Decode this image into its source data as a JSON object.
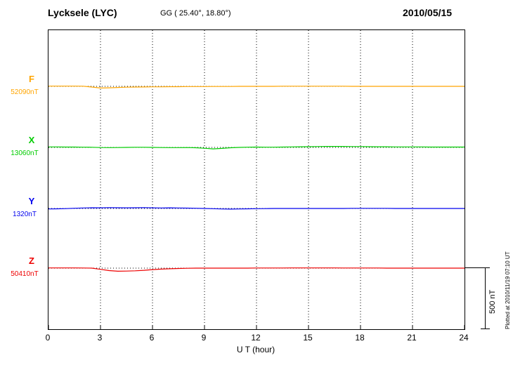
{
  "header": {
    "station": "Lycksele (LYC)",
    "coordinates": "GG ( 25.40°,  18.80°)",
    "date": "2010/05/15"
  },
  "footer": {
    "plotted_at": "Plotted at 2010/11/19 07:10 UT"
  },
  "chart_data": {
    "type": "line",
    "title": "Lycksele (LYC) magnetogram 2010/05/15",
    "xlabel": "U T (hour)",
    "xlim": [
      0,
      24
    ],
    "x_ticks": [
      0,
      3,
      6,
      9,
      12,
      15,
      18,
      21,
      24
    ],
    "x_step_hours": 0.5,
    "grid": "vertical-dotted",
    "scale_bar": {
      "label": "500 nT",
      "span_nT": 500
    },
    "series": [
      {
        "name": "F",
        "baseline_label": "52090nT",
        "baseline_nT": 52090,
        "color": "#FFA500",
        "deviations_nT": [
          2,
          2,
          2,
          2,
          1,
          -6,
          -14,
          -12,
          -9,
          -7,
          -6,
          -5,
          -4,
          -4,
          -3,
          -3,
          -2,
          -2,
          -2,
          -1,
          -1,
          -1,
          0,
          0,
          0,
          0,
          0,
          1,
          1,
          1,
          1,
          1,
          1,
          1,
          1,
          0,
          0,
          0,
          0,
          0,
          0,
          0,
          0,
          0,
          0,
          0,
          0,
          0,
          0
        ]
      },
      {
        "name": "X",
        "baseline_label": "13060nT",
        "baseline_nT": 13060,
        "color": "#00CC00",
        "deviations_nT": [
          4,
          4,
          3,
          3,
          2,
          1,
          -1,
          -2,
          -1,
          0,
          1,
          1,
          0,
          -1,
          -2,
          -2,
          -1,
          -3,
          -7,
          -12,
          -8,
          -3,
          0,
          2,
          3,
          2,
          2,
          3,
          4,
          5,
          6,
          7,
          8,
          8,
          8,
          7,
          7,
          6,
          5,
          5,
          4,
          4,
          4,
          4,
          3,
          3,
          3,
          3,
          3
        ]
      },
      {
        "name": "Y",
        "baseline_label": "1320nT",
        "baseline_nT": 1320,
        "color": "#0000EE",
        "deviations_nT": [
          -4,
          -3,
          -1,
          2,
          4,
          6,
          5,
          7,
          6,
          5,
          6,
          7,
          5,
          4,
          5,
          4,
          3,
          2,
          0,
          -2,
          -4,
          -5,
          -4,
          -3,
          -2,
          -1,
          0,
          0,
          0,
          0,
          0,
          0,
          0,
          0,
          0,
          1,
          1,
          1,
          1,
          1,
          0,
          0,
          0,
          0,
          0,
          0,
          0,
          0,
          0
        ]
      },
      {
        "name": "Z",
        "baseline_label": "50410nT",
        "baseline_nT": 50410,
        "color": "#EE0000",
        "deviations_nT": [
          2,
          2,
          2,
          2,
          1,
          0,
          -10,
          -20,
          -25,
          -24,
          -22,
          -18,
          -12,
          -8,
          -5,
          -3,
          -1,
          0,
          0,
          0,
          0,
          0,
          0,
          0,
          1,
          1,
          1,
          1,
          2,
          2,
          2,
          2,
          2,
          2,
          1,
          1,
          1,
          1,
          1,
          0,
          0,
          0,
          0,
          0,
          0,
          0,
          0,
          0,
          0
        ]
      }
    ]
  }
}
